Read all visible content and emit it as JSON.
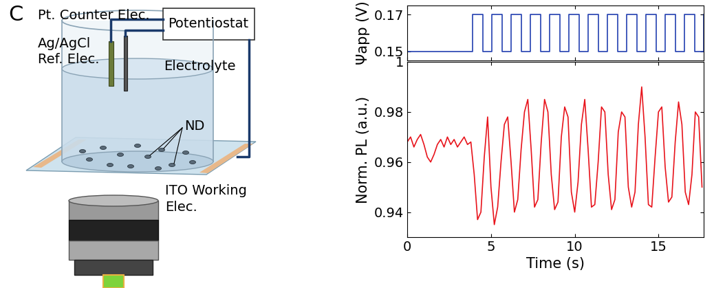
{
  "panel_label": "C",
  "diagram": {
    "counter_electrode": "Pt. Counter Elec.",
    "reference_electrode": "Ag/AgCl\nRef. Elec.",
    "potentiostat": "Potentiostat",
    "electrolyte": "Electrolyte",
    "nanodiamonds": "ND",
    "working_electrode": "ITO Working\nElec."
  },
  "chart_data": [
    {
      "type": "line",
      "y_label": "Ψapp (V)",
      "tick_labels": "y",
      "x": [
        0,
        3.9,
        4.5,
        5.05,
        5.65,
        6.2,
        6.8,
        7.35,
        7.95,
        8.5,
        9.1,
        9.65,
        10.25,
        10.8,
        11.4,
        11.95,
        12.55,
        13.1,
        13.7,
        14.25,
        14.85,
        15.4,
        16.0,
        16.55,
        17.15,
        17.7
      ],
      "series": [
        {
          "name": "Ψapp",
          "color": "#2340b0",
          "line_style": "steps",
          "values": [
            0.15,
            0.17,
            0.15,
            0.17,
            0.15,
            0.17,
            0.15,
            0.17,
            0.15,
            0.17,
            0.15,
            0.17,
            0.15,
            0.17,
            0.15,
            0.17,
            0.15,
            0.17,
            0.15,
            0.17,
            0.15,
            0.17,
            0.15,
            0.17,
            0.15,
            0.17
          ]
        }
      ],
      "xlim": [
        0,
        17.7
      ],
      "xticks": [
        0,
        5,
        10,
        15
      ],
      "ylim": [
        0.145,
        0.175
      ],
      "yticks": [
        0.15,
        0.17
      ]
    },
    {
      "type": "line",
      "x_label": "Time (s)",
      "y_label": "Norm. PL (a.u.)",
      "x": [
        0.0,
        0.2,
        0.4,
        0.6,
        0.8,
        1.0,
        1.2,
        1.4,
        1.6,
        1.8,
        2.0,
        2.2,
        2.4,
        2.6,
        2.8,
        3.0,
        3.2,
        3.4,
        3.6,
        3.8,
        4.0,
        4.2,
        4.4,
        4.6,
        4.8,
        5.0,
        5.2,
        5.4,
        5.6,
        5.8,
        6.0,
        6.2,
        6.4,
        6.6,
        6.8,
        7.0,
        7.2,
        7.4,
        7.6,
        7.8,
        8.0,
        8.2,
        8.4,
        8.6,
        8.8,
        9.0,
        9.2,
        9.4,
        9.6,
        9.8,
        10.0,
        10.2,
        10.4,
        10.6,
        10.8,
        11.0,
        11.2,
        11.4,
        11.6,
        11.8,
        12.0,
        12.2,
        12.4,
        12.6,
        12.8,
        13.0,
        13.2,
        13.4,
        13.6,
        13.8,
        14.0,
        14.2,
        14.4,
        14.6,
        14.8,
        15.0,
        15.2,
        15.4,
        15.6,
        15.8,
        16.0,
        16.2,
        16.4,
        16.6,
        16.8,
        17.0,
        17.2,
        17.4,
        17.6
      ],
      "series": [
        {
          "name": "Norm. PL",
          "color": "#e8141c",
          "line_style": "solid",
          "values": [
            0.968,
            0.97,
            0.966,
            0.969,
            0.971,
            0.967,
            0.962,
            0.96,
            0.963,
            0.967,
            0.969,
            0.966,
            0.97,
            0.967,
            0.969,
            0.966,
            0.968,
            0.97,
            0.967,
            0.968,
            0.955,
            0.937,
            0.94,
            0.962,
            0.978,
            0.95,
            0.935,
            0.942,
            0.96,
            0.975,
            0.978,
            0.96,
            0.94,
            0.945,
            0.965,
            0.98,
            0.985,
            0.965,
            0.942,
            0.945,
            0.968,
            0.985,
            0.98,
            0.955,
            0.941,
            0.944,
            0.97,
            0.982,
            0.978,
            0.948,
            0.94,
            0.952,
            0.975,
            0.985,
            0.965,
            0.942,
            0.943,
            0.96,
            0.982,
            0.98,
            0.955,
            0.941,
            0.945,
            0.972,
            0.98,
            0.978,
            0.95,
            0.942,
            0.948,
            0.975,
            0.99,
            0.97,
            0.943,
            0.942,
            0.962,
            0.98,
            0.982,
            0.958,
            0.944,
            0.946,
            0.968,
            0.984,
            0.975,
            0.948,
            0.943,
            0.955,
            0.98,
            0.978,
            0.95
          ]
        }
      ],
      "xlim": [
        0,
        17.7
      ],
      "xticks": [
        0,
        5,
        10,
        15
      ],
      "ylim": [
        0.93,
        1
      ],
      "yticks": [
        0.94,
        0.96,
        0.98,
        1
      ]
    }
  ]
}
